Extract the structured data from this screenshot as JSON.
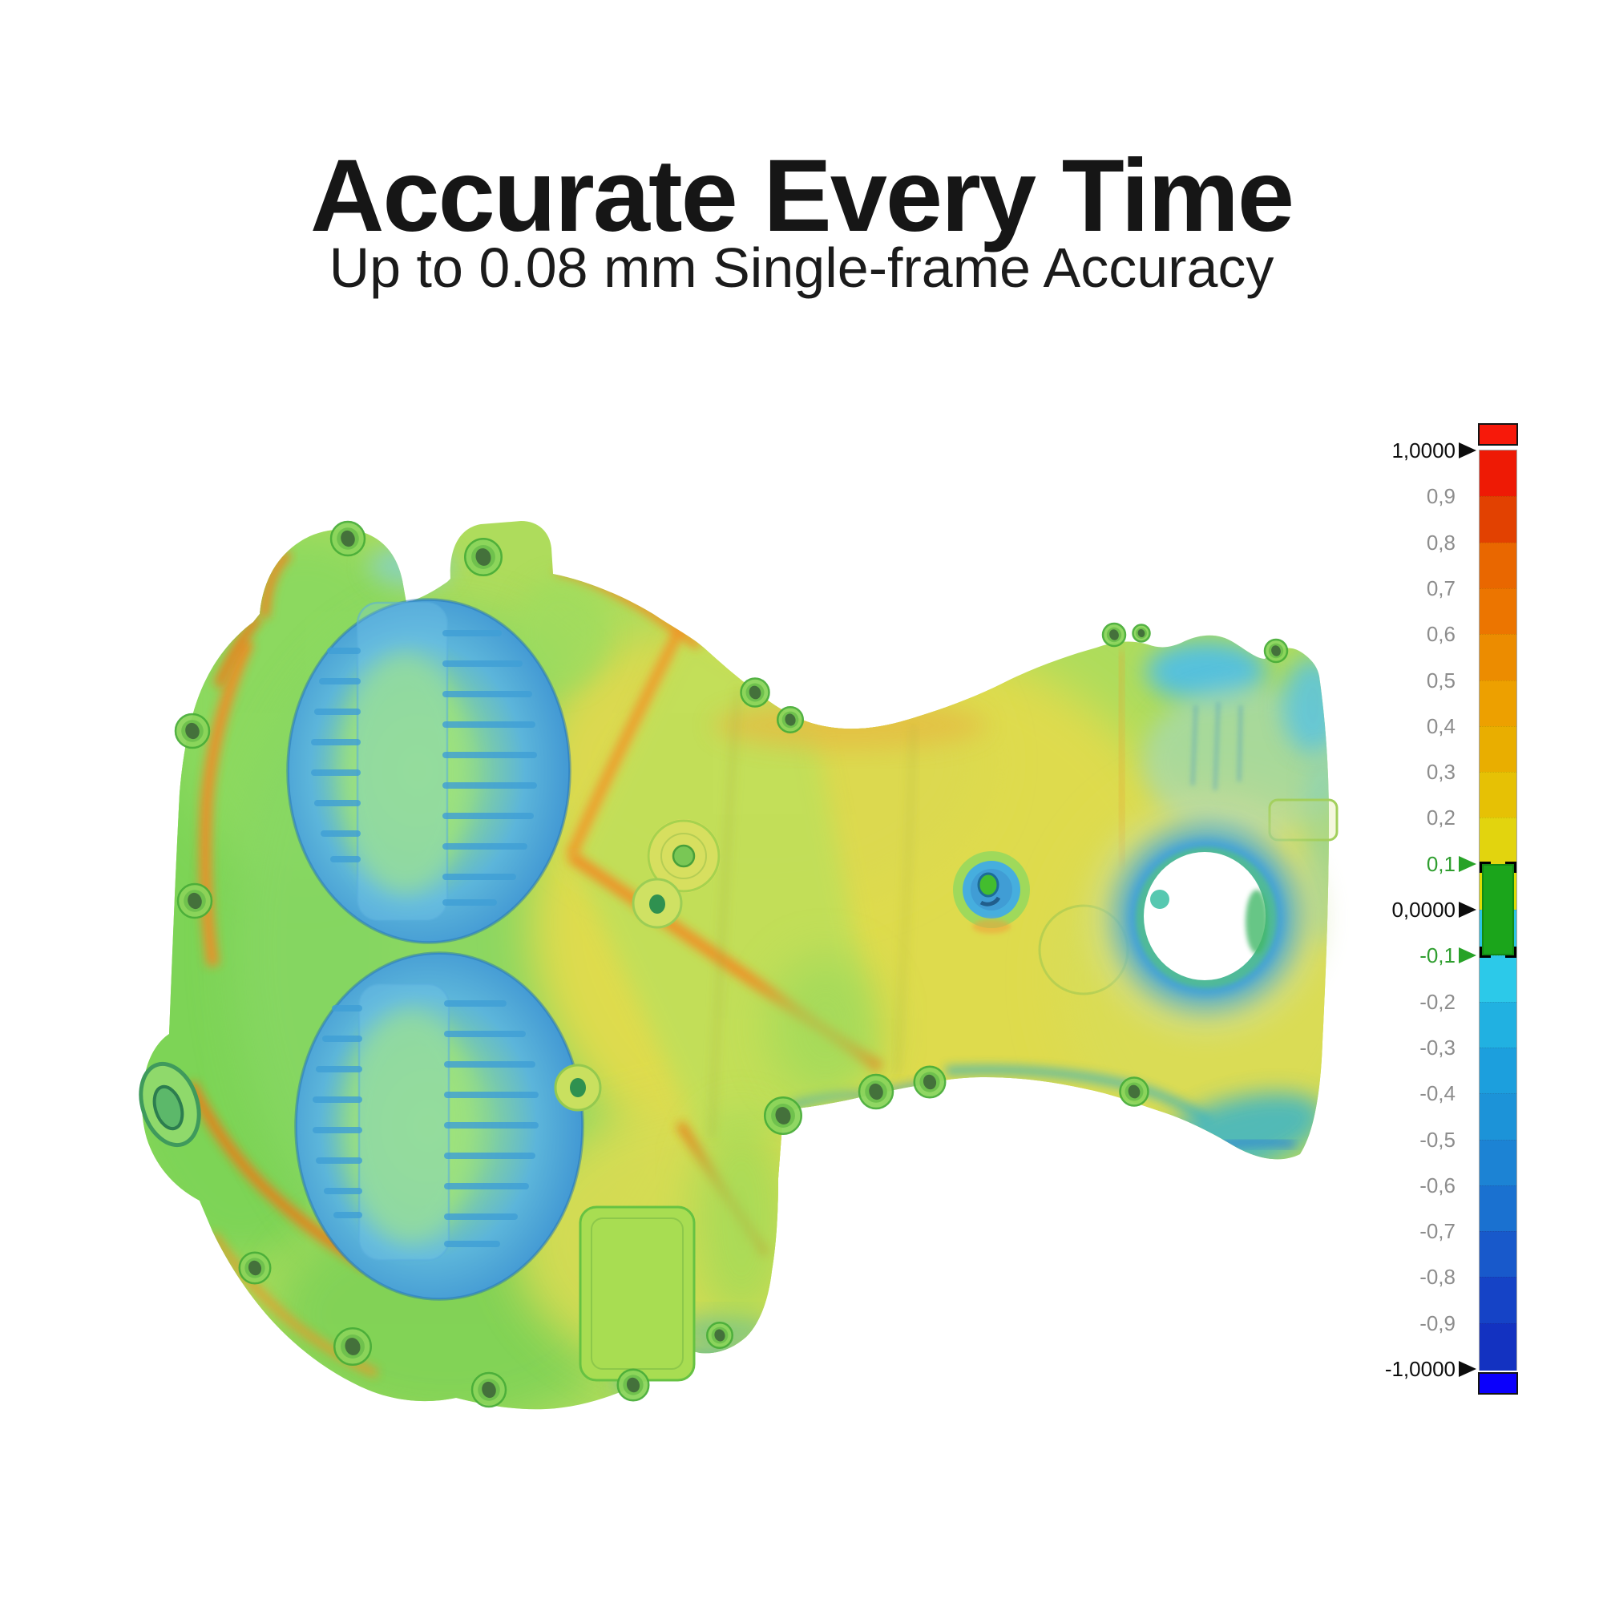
{
  "header": {
    "title": "Accurate Every Time",
    "subtitle": "Up to 0.08 mm Single-frame Accuracy"
  },
  "figure": {
    "description": "Color-coded surface deviation heatmap of a 3D-scanned engine timing cover"
  },
  "colorbar": {
    "labels": [
      {
        "text": "1,0000",
        "color": "black",
        "marker": "black"
      },
      {
        "text": "0,9",
        "color": "gray",
        "marker": null
      },
      {
        "text": "0,8",
        "color": "gray",
        "marker": null
      },
      {
        "text": "0,7",
        "color": "gray",
        "marker": null
      },
      {
        "text": "0,6",
        "color": "gray",
        "marker": null
      },
      {
        "text": "0,5",
        "color": "gray",
        "marker": null
      },
      {
        "text": "0,4",
        "color": "gray",
        "marker": null
      },
      {
        "text": "0,3",
        "color": "gray",
        "marker": null
      },
      {
        "text": "0,2",
        "color": "gray",
        "marker": null
      },
      {
        "text": "0,1",
        "color": "green",
        "marker": "green"
      },
      {
        "text": "0,0000",
        "color": "black",
        "marker": "black"
      },
      {
        "text": "-0,1",
        "color": "green",
        "marker": "green"
      },
      {
        "text": "-0,2",
        "color": "gray",
        "marker": null
      },
      {
        "text": "-0,3",
        "color": "gray",
        "marker": null
      },
      {
        "text": "-0,4",
        "color": "gray",
        "marker": null
      },
      {
        "text": "-0,5",
        "color": "gray",
        "marker": null
      },
      {
        "text": "-0,6",
        "color": "gray",
        "marker": null
      },
      {
        "text": "-0,7",
        "color": "gray",
        "marker": null
      },
      {
        "text": "-0,8",
        "color": "gray",
        "marker": null
      },
      {
        "text": "-0,9",
        "color": "gray",
        "marker": null
      },
      {
        "text": "-1,0000",
        "color": "black",
        "marker": "black"
      }
    ],
    "segments": [
      "#ee1a05",
      "#e24101",
      "#e96700",
      "#ec7500",
      "#ec8c00",
      "#eda000",
      "#e9ae00",
      "#e6c105",
      "#e2d40e",
      "#dedd05",
      "#2bc5e5",
      "#2cc9e9",
      "#21b1e1",
      "#1c9fdd",
      "#1c93d8",
      "#1c83d4",
      "#1a71d0",
      "#1859cb",
      "#1543c6",
      "#1332c1"
    ],
    "above_range_color": "#f7190a",
    "below_range_color": "#0b00fc",
    "tolerance_band_color": "#1ba51b"
  },
  "chart_data": {
    "type": "heatmap",
    "title": "Accurate Every Time",
    "subtitle": "Up to 0.08 mm Single-frame Accuracy",
    "description": "Deviation color map rendered on a 3D scanned engine timing cover; green areas within tolerance, blue areas negative deviation (ribbed circular bosses), yellow/orange areas positive deviation (flat panels and edges)",
    "units": "mm",
    "legend": {
      "orientation": "vertical",
      "position": "right",
      "range": [
        -1.0,
        1.0
      ],
      "tick_step": 0.1,
      "decimal_separator": ",",
      "tick_labels_top_to_bottom": [
        "1,0000",
        "0,9",
        "0,8",
        "0,7",
        "0,6",
        "0,5",
        "0,4",
        "0,3",
        "0,2",
        "0,1",
        "0,0000",
        "-0,1",
        "-0,2",
        "-0,3",
        "-0,4",
        "-0,5",
        "-0,6",
        "-0,7",
        "-0,8",
        "-0,9",
        "-1,0000"
      ],
      "markers": [
        {
          "label": "1,0000",
          "value": 1.0,
          "style": "black-triangle"
        },
        {
          "label": "0,1",
          "value": 0.1,
          "style": "green-triangle"
        },
        {
          "label": "0,0000",
          "value": 0.0,
          "style": "black-triangle"
        },
        {
          "label": "-0,1",
          "value": -0.1,
          "style": "green-triangle"
        },
        {
          "label": "-1,0000",
          "value": -1.0,
          "style": "black-triangle"
        }
      ],
      "tolerance_band": {
        "min": -0.1,
        "max": 0.1,
        "color": "#1ba51b"
      },
      "segment_colors_top_to_bottom": [
        "#ee1a05",
        "#e24101",
        "#e96700",
        "#ec7500",
        "#ec8c00",
        "#eda000",
        "#e9ae00",
        "#e6c105",
        "#e2d40e",
        "#dedd05",
        "#2bc5e5",
        "#2cc9e9",
        "#21b1e1",
        "#1c9fdd",
        "#1c93d8",
        "#1c83d4",
        "#1a71d0",
        "#1859cb",
        "#1543c6",
        "#1332c1"
      ],
      "above_range_color": "#f7190a",
      "below_range_color": "#0b00fc"
    }
  }
}
